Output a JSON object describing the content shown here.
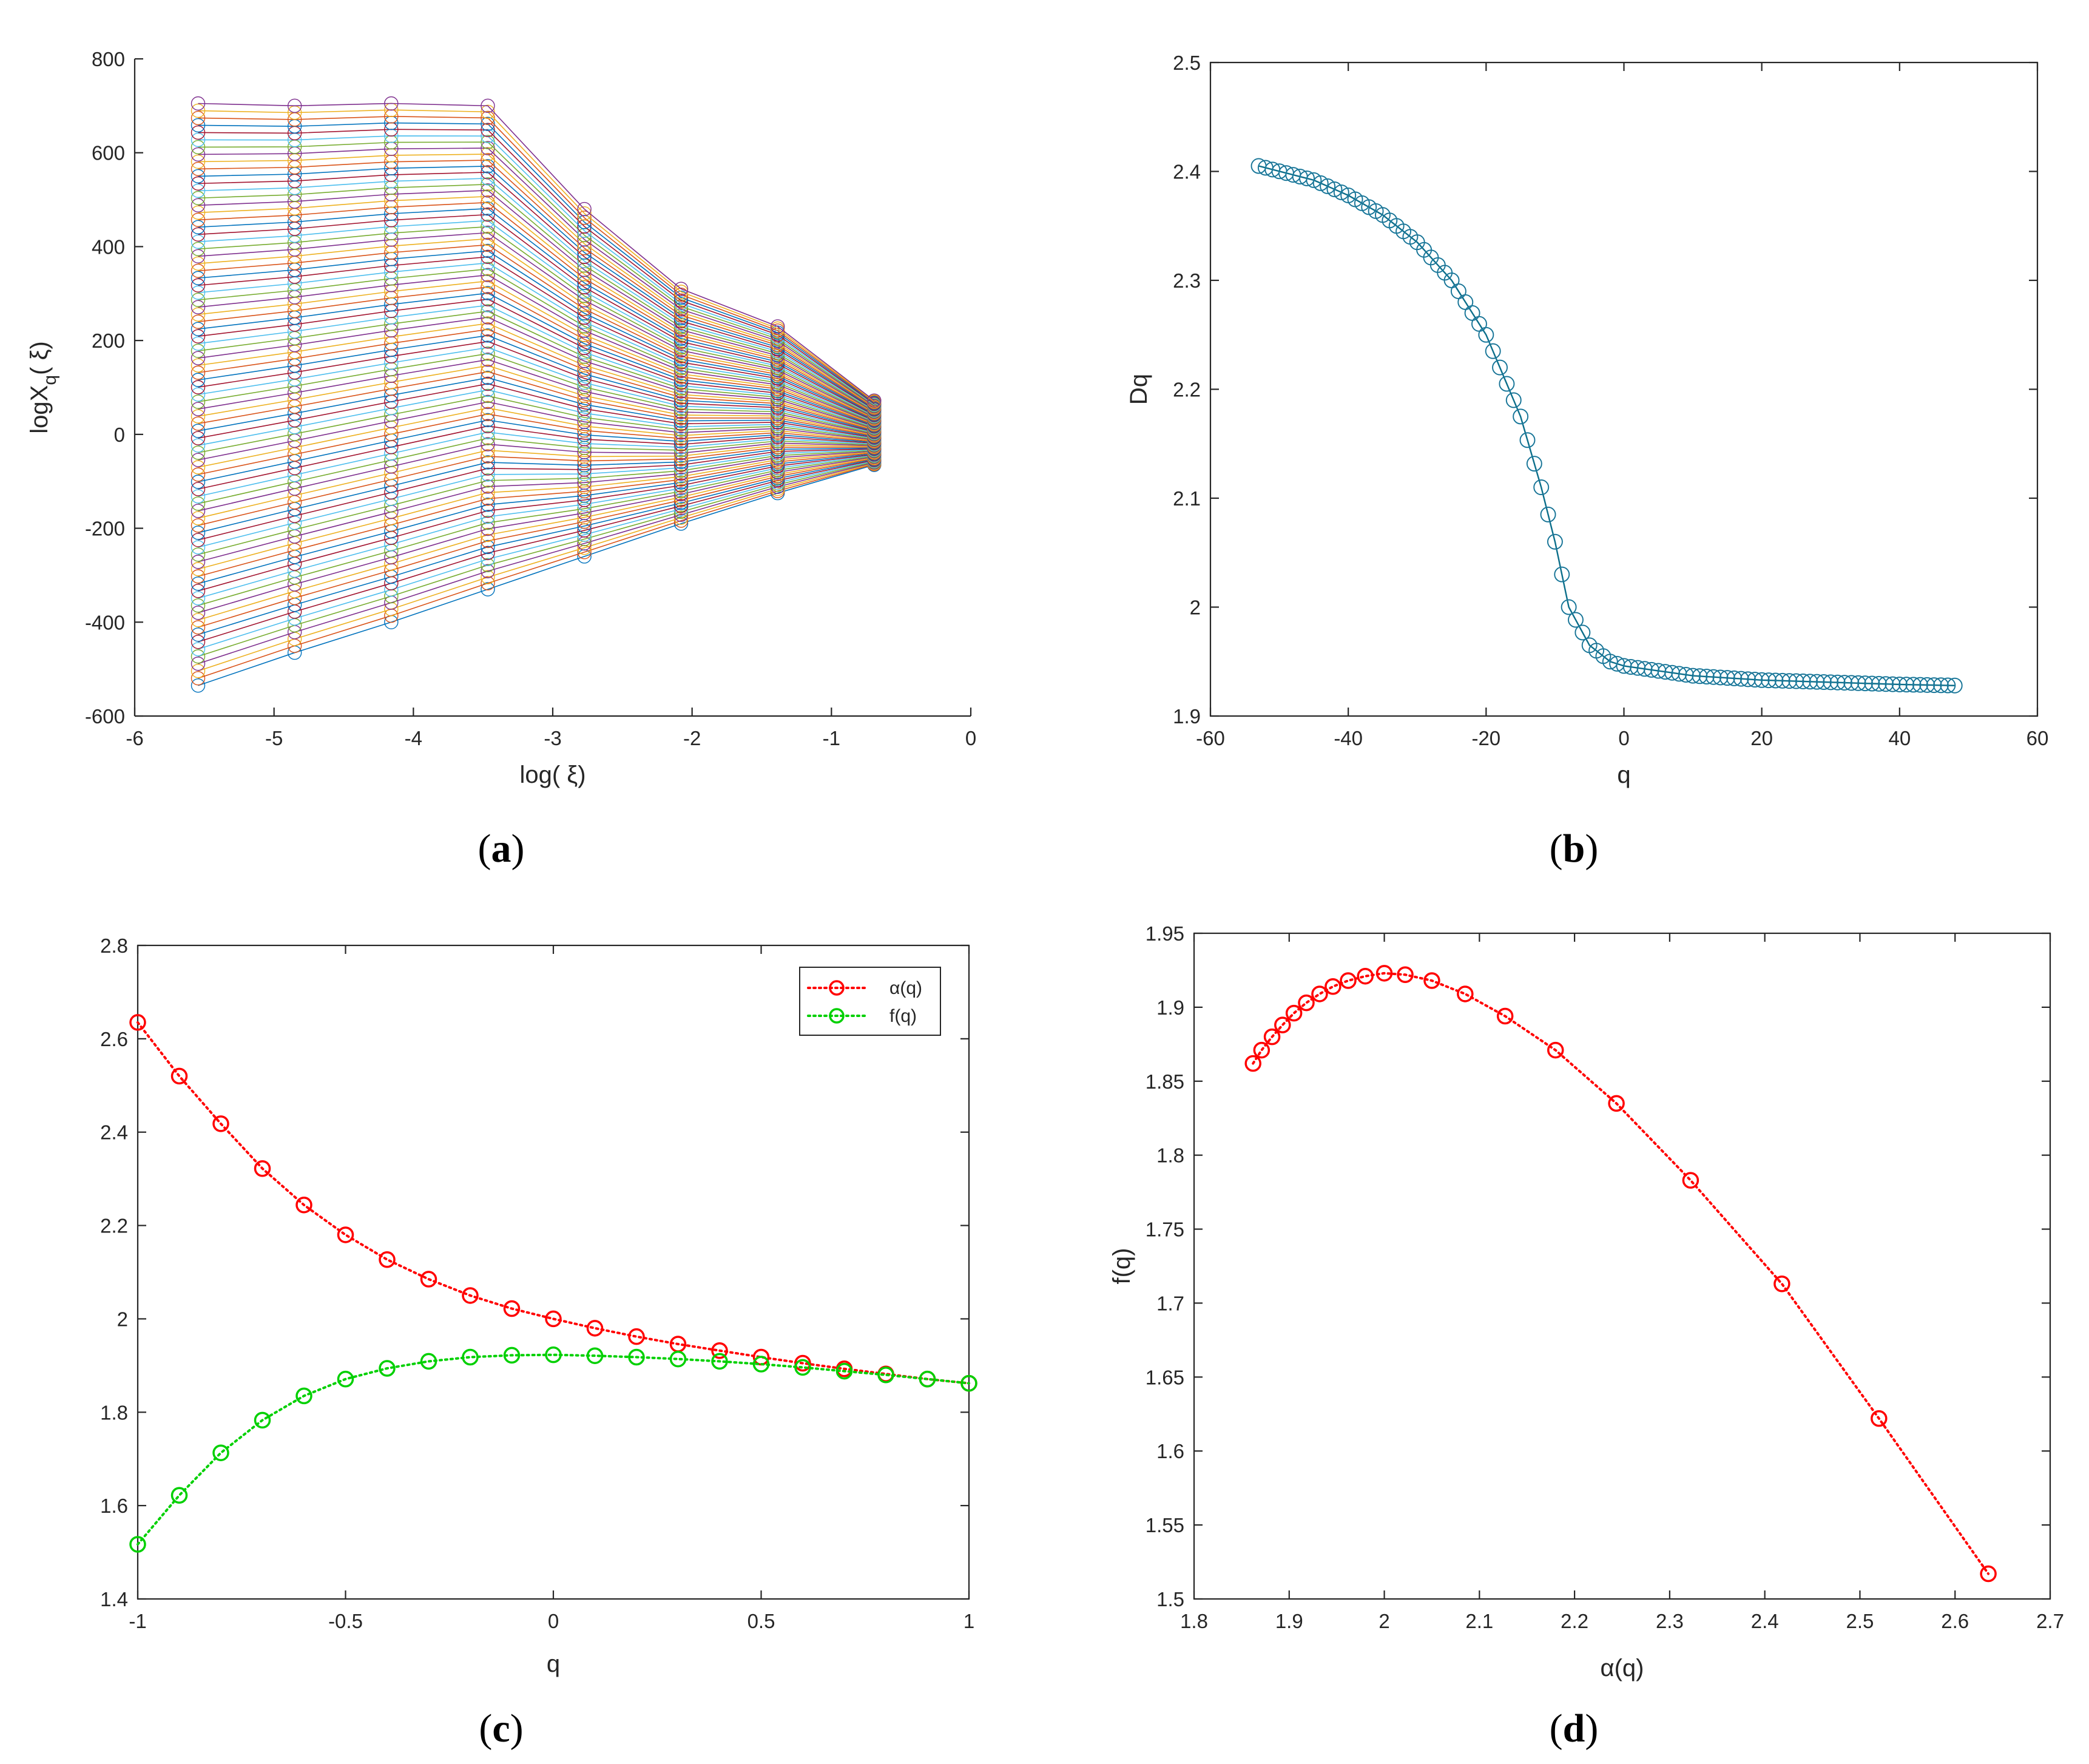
{
  "panels": {
    "a": {
      "label": "a"
    },
    "b": {
      "label": "b"
    },
    "c": {
      "label": "c"
    },
    "d": {
      "label": "d"
    }
  },
  "chart_data": [
    {
      "id": "a",
      "type": "line",
      "xlabel": "log( ξ)",
      "ylabel_main": "logX",
      "ylabel_sub": "q",
      "ylabel_tail": "( ξ)",
      "xlim": [
        -6,
        0
      ],
      "ylim": [
        -600,
        800
      ],
      "xticks": [
        -6,
        -5,
        -4,
        -3,
        -2,
        -1,
        0
      ],
      "yticks": [
        -600,
        -400,
        -200,
        0,
        200,
        400,
        600,
        800
      ],
      "x": [
        -5.545,
        -4.852,
        -4.159,
        -3.466,
        -2.773,
        -2.079,
        -1.386,
        -0.693
      ],
      "series_family": {
        "q_range": [
          -10,
          10
        ],
        "count": 81,
        "endpoints_top": [
          705,
          700,
          705,
          700,
          480,
          310,
          230,
          72
        ],
        "endpoints_bottom": [
          -535,
          -465,
          -400,
          -330,
          -260,
          -190,
          -125,
          -65
        ]
      },
      "marker": "circle",
      "grid": false
    },
    {
      "id": "b",
      "type": "line",
      "xlabel": "q",
      "ylabel": "Dq",
      "xlim": [
        -60,
        60
      ],
      "ylim": [
        1.9,
        2.5
      ],
      "xticks": [
        -60,
        -40,
        -20,
        0,
        20,
        40,
        60
      ],
      "yticks": [
        1.9,
        2,
        2.1,
        2.2,
        2.3,
        2.4,
        2.5
      ],
      "q_range": [
        -53,
        48
      ],
      "points_sample": [
        [
          -53,
          2.405
        ],
        [
          -45,
          2.392
        ],
        [
          -40,
          2.378
        ],
        [
          -35,
          2.36
        ],
        [
          -30,
          2.335
        ],
        [
          -25,
          2.3
        ],
        [
          -20,
          2.25
        ],
        [
          -15,
          2.175
        ],
        [
          -12,
          2.11
        ],
        [
          -10,
          2.06
        ],
        [
          -8,
          2.0
        ],
        [
          -5,
          1.965
        ],
        [
          -2,
          1.95
        ],
        [
          0,
          1.946
        ],
        [
          10,
          1.937
        ],
        [
          20,
          1.933
        ],
        [
          30,
          1.931
        ],
        [
          40,
          1.929
        ],
        [
          48,
          1.928
        ]
      ],
      "color": "#1f8fb4",
      "marker": "circle",
      "grid": false
    },
    {
      "id": "c",
      "type": "line",
      "xlabel": "q",
      "xlim": [
        -1,
        1
      ],
      "ylim": [
        1.4,
        2.8
      ],
      "xticks": [
        -1,
        -0.5,
        0,
        0.5,
        1
      ],
      "yticks": [
        1.4,
        1.6,
        1.8,
        2,
        2.2,
        2.4,
        2.6,
        2.8
      ],
      "x": [
        -1,
        -0.9,
        -0.8,
        -0.7,
        -0.6,
        -0.5,
        -0.4,
        -0.3,
        -0.2,
        -0.1,
        0,
        0.1,
        0.2,
        0.3,
        0.4,
        0.5,
        0.6,
        0.7,
        0.8,
        0.9,
        1
      ],
      "series": [
        {
          "name": "α(q)",
          "color": "#ff0000",
          "values": [
            2.635,
            2.52,
            2.418,
            2.322,
            2.244,
            2.18,
            2.127,
            2.085,
            2.05,
            2.022,
            2.0,
            1.98,
            1.962,
            1.946,
            1.932,
            1.918,
            1.905,
            1.893,
            1.882,
            1.871,
            1.862
          ]
        },
        {
          "name": "f(q)",
          "color": "#00d000",
          "values": [
            1.517,
            1.622,
            1.713,
            1.783,
            1.835,
            1.871,
            1.894,
            1.909,
            1.918,
            1.922,
            1.923,
            1.921,
            1.918,
            1.914,
            1.909,
            1.903,
            1.896,
            1.888,
            1.88,
            1.871,
            1.862
          ]
        }
      ],
      "legend": "top-right",
      "marker": "circle",
      "grid": false
    },
    {
      "id": "d",
      "type": "line",
      "xlabel": "α(q)",
      "ylabel": "f(q)",
      "xlim": [
        1.8,
        2.7
      ],
      "ylim": [
        1.5,
        1.95
      ],
      "xticks": [
        1.8,
        1.9,
        2,
        2.1,
        2.2,
        2.3,
        2.4,
        2.5,
        2.6,
        2.7
      ],
      "yticks": [
        1.5,
        1.55,
        1.6,
        1.65,
        1.7,
        1.75,
        1.8,
        1.85,
        1.9,
        1.95
      ],
      "x": [
        1.862,
        1.871,
        1.882,
        1.893,
        1.905,
        1.918,
        1.932,
        1.946,
        1.962,
        1.98,
        2.0,
        2.022,
        2.05,
        2.085,
        2.127,
        2.18,
        2.244,
        2.322,
        2.418,
        2.52,
        2.635
      ],
      "y": [
        1.862,
        1.871,
        1.88,
        1.888,
        1.896,
        1.903,
        1.909,
        1.914,
        1.918,
        1.921,
        1.923,
        1.922,
        1.918,
        1.909,
        1.894,
        1.871,
        1.835,
        1.783,
        1.713,
        1.622,
        1.517
      ],
      "color": "#ff0000",
      "marker": "circle",
      "grid": false
    }
  ]
}
